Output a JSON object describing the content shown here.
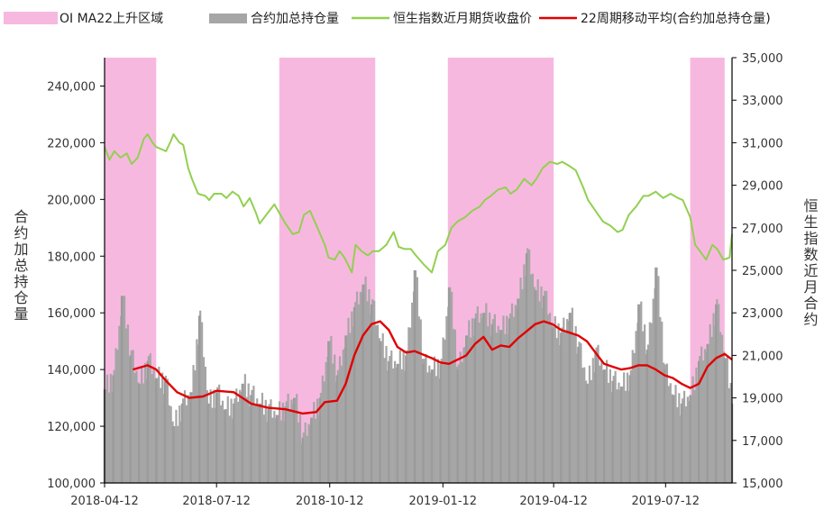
{
  "chart_data": {
    "type": "bar+line",
    "legend": [
      {
        "label": "OI MA22上升区域",
        "kind": "band",
        "color": "#F7B8E0"
      },
      {
        "label": "合约加总持仓量",
        "kind": "bar",
        "color": "#A6A6A6"
      },
      {
        "label": "恒生指数近月期货收盘价",
        "kind": "line",
        "color": "#92D050"
      },
      {
        "label": "22周期移动平均(合约加总持仓量)",
        "kind": "line",
        "color": "#E00000"
      }
    ],
    "left_axis": {
      "title": "合约加总持仓量",
      "range": [
        100000,
        250000
      ],
      "ticks": [
        100000,
        120000,
        140000,
        160000,
        180000,
        200000,
        220000,
        240000
      ],
      "tick_labels": [
        "100,000",
        "120,000",
        "140,000",
        "160,000",
        "180,000",
        "200,000",
        "220,000",
        "240,000"
      ]
    },
    "right_axis": {
      "title": "恒生指数近月合约",
      "range": [
        15000,
        35000
      ],
      "ticks": [
        15000,
        17000,
        19000,
        21000,
        23000,
        25000,
        27000,
        29000,
        31000,
        33000,
        35000
      ],
      "tick_labels": [
        "15,000",
        "17,000",
        "19,000",
        "21,000",
        "23,000",
        "25,000",
        "27,000",
        "29,000",
        "31,000",
        "33,000",
        "35,000"
      ]
    },
    "x_axis": {
      "range": [
        "2018-04-12",
        "2019-09-04"
      ],
      "ticks": [
        "2018-04-12",
        "2018-07-12",
        "2018-10-12",
        "2019-01-12",
        "2019-04-12",
        "2019-07-12"
      ]
    },
    "rising_bands": [
      [
        "2018-04-12",
        "2018-05-24"
      ],
      [
        "2018-09-01",
        "2018-11-18"
      ],
      [
        "2019-01-16",
        "2019-04-12"
      ],
      [
        "2019-08-01",
        "2019-08-29"
      ]
    ],
    "open_interest": [
      [
        "2018-04-12",
        133000
      ],
      [
        "2018-04-19",
        138000
      ],
      [
        "2018-04-26",
        166000
      ],
      [
        "2018-05-03",
        145000
      ],
      [
        "2018-05-10",
        135000
      ],
      [
        "2018-05-17",
        143000
      ],
      [
        "2018-05-24",
        137000
      ],
      [
        "2018-05-31",
        136000
      ],
      [
        "2018-06-07",
        120000
      ],
      [
        "2018-06-14",
        128000
      ],
      [
        "2018-06-21",
        132000
      ],
      [
        "2018-06-28",
        159000
      ],
      [
        "2018-07-05",
        128000
      ],
      [
        "2018-07-12",
        132000
      ],
      [
        "2018-07-19",
        126000
      ],
      [
        "2018-07-26",
        128000
      ],
      [
        "2018-08-02",
        135000
      ],
      [
        "2018-08-09",
        131000
      ],
      [
        "2018-08-16",
        128000
      ],
      [
        "2018-08-23",
        126000
      ],
      [
        "2018-08-30",
        124000
      ],
      [
        "2018-09-06",
        127000
      ],
      [
        "2018-09-13",
        130000
      ],
      [
        "2018-09-20",
        116000
      ],
      [
        "2018-09-27",
        123000
      ],
      [
        "2018-10-04",
        130000
      ],
      [
        "2018-10-11",
        150000
      ],
      [
        "2018-10-18",
        138000
      ],
      [
        "2018-10-25",
        152000
      ],
      [
        "2018-11-01",
        162000
      ],
      [
        "2018-11-08",
        170000
      ],
      [
        "2018-11-15",
        163000
      ],
      [
        "2018-11-22",
        150000
      ],
      [
        "2018-11-29",
        143000
      ],
      [
        "2018-12-06",
        142000
      ],
      [
        "2018-12-13",
        145000
      ],
      [
        "2018-12-20",
        175000
      ],
      [
        "2018-12-27",
        142000
      ],
      [
        "2019-01-03",
        140000
      ],
      [
        "2019-01-10",
        142000
      ],
      [
        "2019-01-17",
        169000
      ],
      [
        "2019-01-24",
        140000
      ],
      [
        "2019-01-31",
        152000
      ],
      [
        "2019-02-07",
        158000
      ],
      [
        "2019-02-14",
        160000
      ],
      [
        "2019-02-21",
        156000
      ],
      [
        "2019-02-28",
        154000
      ],
      [
        "2019-03-07",
        158000
      ],
      [
        "2019-03-14",
        165000
      ],
      [
        "2019-03-21",
        181000
      ],
      [
        "2019-03-28",
        168000
      ],
      [
        "2019-04-04",
        166000
      ],
      [
        "2019-04-11",
        155000
      ],
      [
        "2019-04-18",
        153000
      ],
      [
        "2019-04-25",
        160000
      ],
      [
        "2019-05-02",
        148000
      ],
      [
        "2019-05-09",
        135000
      ],
      [
        "2019-05-16",
        146000
      ],
      [
        "2019-05-23",
        140000
      ],
      [
        "2019-05-30",
        136000
      ],
      [
        "2019-06-06",
        134000
      ],
      [
        "2019-06-13",
        138000
      ],
      [
        "2019-06-20",
        163000
      ],
      [
        "2019-06-27",
        147000
      ],
      [
        "2019-07-04",
        176000
      ],
      [
        "2019-07-11",
        140000
      ],
      [
        "2019-07-18",
        131000
      ],
      [
        "2019-07-25",
        128000
      ],
      [
        "2019-08-01",
        131000
      ],
      [
        "2019-08-08",
        143000
      ],
      [
        "2019-08-15",
        149000
      ],
      [
        "2019-08-22",
        163000
      ],
      [
        "2019-08-29",
        144000
      ],
      [
        "2019-09-04",
        128000
      ]
    ],
    "hsi_close": [
      [
        "2018-04-12",
        30800
      ],
      [
        "2018-04-16",
        30200
      ],
      [
        "2018-04-20",
        30600
      ],
      [
        "2018-04-25",
        30300
      ],
      [
        "2018-04-30",
        30500
      ],
      [
        "2018-05-04",
        30000
      ],
      [
        "2018-05-09",
        30300
      ],
      [
        "2018-05-14",
        31200
      ],
      [
        "2018-05-17",
        31400
      ],
      [
        "2018-05-21",
        31000
      ],
      [
        "2018-05-24",
        30800
      ],
      [
        "2018-05-28",
        30700
      ],
      [
        "2018-06-01",
        30600
      ],
      [
        "2018-06-05",
        31100
      ],
      [
        "2018-06-07",
        31400
      ],
      [
        "2018-06-12",
        31000
      ],
      [
        "2018-06-15",
        30900
      ],
      [
        "2018-06-19",
        29800
      ],
      [
        "2018-06-22",
        29300
      ],
      [
        "2018-06-27",
        28600
      ],
      [
        "2018-07-03",
        28500
      ],
      [
        "2018-07-06",
        28300
      ],
      [
        "2018-07-10",
        28600
      ],
      [
        "2018-07-16",
        28600
      ],
      [
        "2018-07-20",
        28400
      ],
      [
        "2018-07-25",
        28700
      ],
      [
        "2018-07-30",
        28500
      ],
      [
        "2018-08-03",
        28000
      ],
      [
        "2018-08-08",
        28400
      ],
      [
        "2018-08-13",
        27700
      ],
      [
        "2018-08-16",
        27200
      ],
      [
        "2018-08-20",
        27500
      ],
      [
        "2018-08-24",
        27800
      ],
      [
        "2018-08-28",
        28100
      ],
      [
        "2018-09-03",
        27500
      ],
      [
        "2018-09-06",
        27200
      ],
      [
        "2018-09-12",
        26700
      ],
      [
        "2018-09-17",
        26800
      ],
      [
        "2018-09-21",
        27600
      ],
      [
        "2018-09-26",
        27800
      ],
      [
        "2018-10-02",
        27000
      ],
      [
        "2018-10-08",
        26200
      ],
      [
        "2018-10-11",
        25600
      ],
      [
        "2018-10-16",
        25500
      ],
      [
        "2018-10-20",
        25900
      ],
      [
        "2018-10-24",
        25600
      ],
      [
        "2018-10-30",
        24900
      ],
      [
        "2018-11-02",
        26200
      ],
      [
        "2018-11-07",
        25900
      ],
      [
        "2018-11-12",
        25700
      ],
      [
        "2018-11-16",
        25900
      ],
      [
        "2018-11-21",
        25900
      ],
      [
        "2018-11-27",
        26200
      ],
      [
        "2018-12-03",
        26800
      ],
      [
        "2018-12-07",
        26100
      ],
      [
        "2018-12-12",
        26000
      ],
      [
        "2018-12-17",
        26000
      ],
      [
        "2018-12-21",
        25700
      ],
      [
        "2018-12-27",
        25300
      ],
      [
        "2019-01-03",
        24900
      ],
      [
        "2019-01-08",
        25900
      ],
      [
        "2019-01-14",
        26200
      ],
      [
        "2019-01-19",
        27000
      ],
      [
        "2019-01-24",
        27300
      ],
      [
        "2019-01-30",
        27500
      ],
      [
        "2019-02-05",
        27800
      ],
      [
        "2019-02-11",
        28000
      ],
      [
        "2019-02-15",
        28300
      ],
      [
        "2019-02-20",
        28500
      ],
      [
        "2019-02-26",
        28800
      ],
      [
        "2019-03-04",
        28900
      ],
      [
        "2019-03-08",
        28600
      ],
      [
        "2019-03-13",
        28800
      ],
      [
        "2019-03-19",
        29300
      ],
      [
        "2019-03-25",
        29000
      ],
      [
        "2019-03-29",
        29300
      ],
      [
        "2019-04-03",
        29800
      ],
      [
        "2019-04-09",
        30100
      ],
      [
        "2019-04-15",
        30000
      ],
      [
        "2019-04-19",
        30100
      ],
      [
        "2019-04-25",
        29900
      ],
      [
        "2019-04-30",
        29700
      ],
      [
        "2019-05-06",
        28900
      ],
      [
        "2019-05-10",
        28300
      ],
      [
        "2019-05-16",
        27800
      ],
      [
        "2019-05-22",
        27300
      ],
      [
        "2019-05-28",
        27100
      ],
      [
        "2019-06-03",
        26800
      ],
      [
        "2019-06-07",
        26900
      ],
      [
        "2019-06-12",
        27600
      ],
      [
        "2019-06-18",
        28000
      ],
      [
        "2019-06-24",
        28500
      ],
      [
        "2019-06-28",
        28500
      ],
      [
        "2019-07-04",
        28700
      ],
      [
        "2019-07-10",
        28400
      ],
      [
        "2019-07-16",
        28600
      ],
      [
        "2019-07-22",
        28400
      ],
      [
        "2019-07-26",
        28300
      ],
      [
        "2019-08-01",
        27500
      ],
      [
        "2019-08-05",
        26200
      ],
      [
        "2019-08-09",
        25900
      ],
      [
        "2019-08-14",
        25500
      ],
      [
        "2019-08-19",
        26200
      ],
      [
        "2019-08-23",
        26000
      ],
      [
        "2019-08-28",
        25500
      ],
      [
        "2019-09-02",
        25600
      ],
      [
        "2019-09-04",
        26700
      ]
    ],
    "oi_ma22": [
      [
        "2018-05-05",
        140000
      ],
      [
        "2018-05-17",
        141500
      ],
      [
        "2018-05-24",
        140000
      ],
      [
        "2018-06-01",
        136000
      ],
      [
        "2018-06-10",
        132000
      ],
      [
        "2018-06-20",
        130000
      ],
      [
        "2018-07-01",
        130500
      ],
      [
        "2018-07-12",
        132500
      ],
      [
        "2018-07-26",
        132000
      ],
      [
        "2018-08-09",
        128000
      ],
      [
        "2018-08-23",
        126500
      ],
      [
        "2018-09-06",
        126000
      ],
      [
        "2018-09-20",
        124500
      ],
      [
        "2018-10-01",
        125000
      ],
      [
        "2018-10-08",
        128500
      ],
      [
        "2018-10-18",
        129000
      ],
      [
        "2018-10-25",
        135000
      ],
      [
        "2018-11-01",
        145000
      ],
      [
        "2018-11-08",
        152000
      ],
      [
        "2018-11-15",
        156000
      ],
      [
        "2018-11-22",
        157000
      ],
      [
        "2018-11-29",
        154000
      ],
      [
        "2018-12-06",
        148000
      ],
      [
        "2018-12-13",
        146000
      ],
      [
        "2018-12-20",
        146500
      ],
      [
        "2019-01-03",
        144000
      ],
      [
        "2019-01-10",
        142500
      ],
      [
        "2019-01-17",
        142000
      ],
      [
        "2019-01-24",
        143500
      ],
      [
        "2019-01-31",
        145000
      ],
      [
        "2019-02-07",
        149000
      ],
      [
        "2019-02-14",
        151500
      ],
      [
        "2019-02-21",
        147000
      ],
      [
        "2019-02-28",
        148500
      ],
      [
        "2019-03-07",
        148000
      ],
      [
        "2019-03-14",
        151000
      ],
      [
        "2019-03-21",
        153500
      ],
      [
        "2019-03-28",
        156000
      ],
      [
        "2019-04-04",
        157000
      ],
      [
        "2019-04-11",
        156000
      ],
      [
        "2019-04-18",
        154000
      ],
      [
        "2019-04-25",
        153000
      ],
      [
        "2019-05-02",
        152000
      ],
      [
        "2019-05-09",
        150000
      ],
      [
        "2019-05-16",
        146000
      ],
      [
        "2019-05-23",
        142000
      ],
      [
        "2019-05-30",
        141000
      ],
      [
        "2019-06-06",
        140000
      ],
      [
        "2019-06-13",
        140500
      ],
      [
        "2019-06-20",
        141500
      ],
      [
        "2019-06-27",
        141500
      ],
      [
        "2019-07-04",
        140000
      ],
      [
        "2019-07-11",
        138000
      ],
      [
        "2019-07-18",
        137000
      ],
      [
        "2019-07-25",
        135000
      ],
      [
        "2019-08-01",
        133500
      ],
      [
        "2019-08-08",
        135000
      ],
      [
        "2019-08-15",
        141000
      ],
      [
        "2019-08-22",
        144000
      ],
      [
        "2019-08-29",
        145500
      ],
      [
        "2019-09-04",
        143500
      ]
    ]
  }
}
